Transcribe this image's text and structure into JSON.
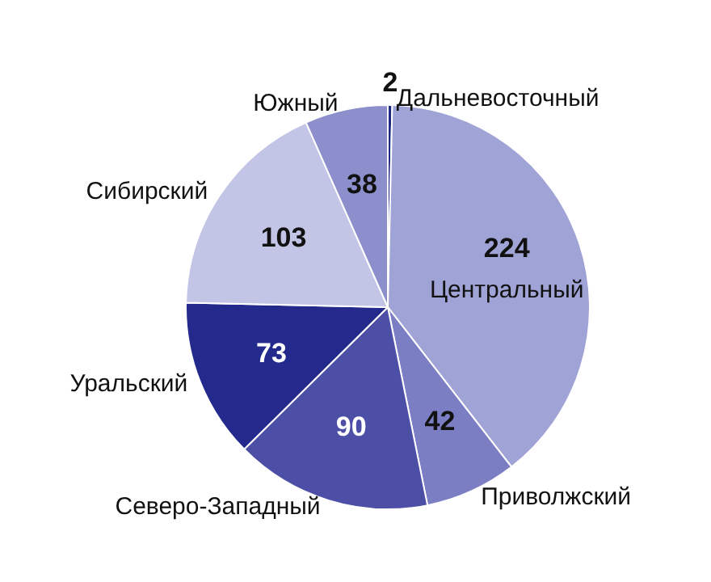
{
  "chart_data": {
    "type": "pie",
    "categories": [
      "Дальневосточный",
      "Центральный",
      "Приволжский",
      "Северо-Западный",
      "Уральский",
      "Сибирский",
      "Южный"
    ],
    "values": [
      2,
      224,
      42,
      90,
      73,
      103,
      38
    ],
    "colors": [
      "#1f2a85",
      "#a0a3d5",
      "#7c7ec4",
      "#4d4fa6",
      "#232a8c",
      "#c3c5e6",
      "#8c8fcb"
    ],
    "data_labels": true
  }
}
